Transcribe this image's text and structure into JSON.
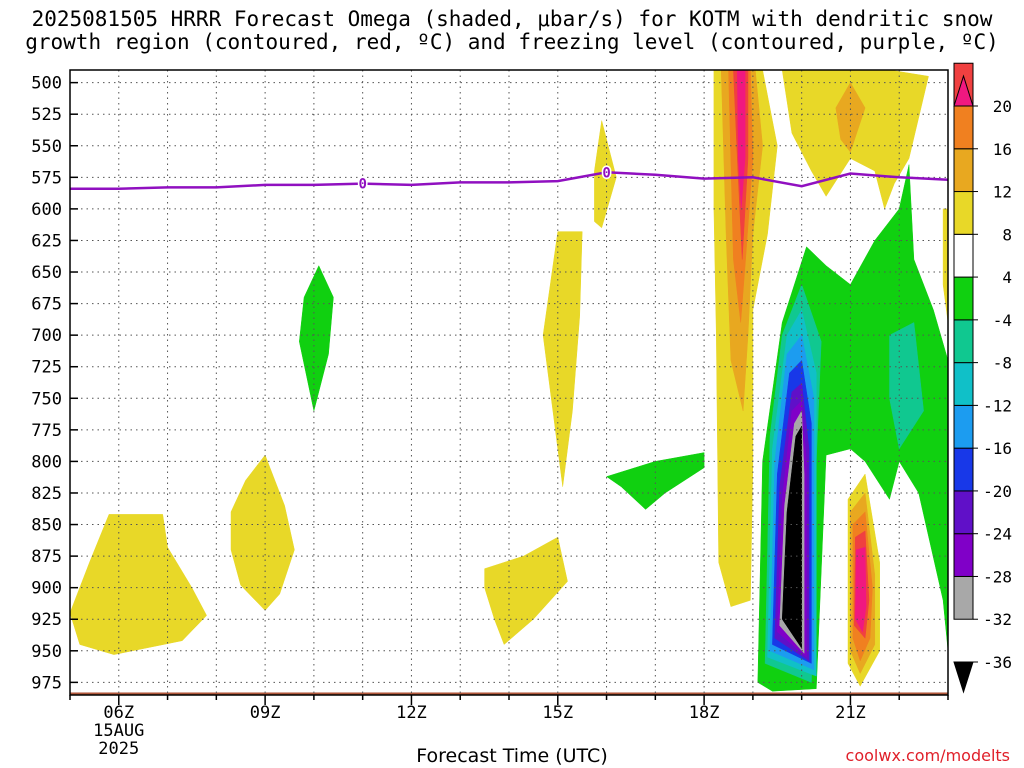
{
  "chart_data": {
    "type": "heatmap",
    "title_line1": "2025081505 HRRR Forecast Omega (shaded, μbar/s) for KOTM with dendritic snow",
    "title_line2": "growth region (contoured, red, ºC) and freezing level (contoured, purple, ºC)",
    "xlabel": "Forecast Time (UTC)",
    "credit": "coolwx.com/modelts",
    "x_ticks": [
      "06Z",
      "09Z",
      "12Z",
      "15Z",
      "18Z",
      "21Z"
    ],
    "x_tick_hours": [
      6,
      9,
      12,
      15,
      18,
      21
    ],
    "x_date_lines": [
      "15AUG",
      "2025"
    ],
    "xlim": [
      5,
      23
    ],
    "y_ticks": [
      500,
      525,
      550,
      575,
      600,
      625,
      650,
      675,
      700,
      725,
      750,
      775,
      800,
      825,
      850,
      875,
      900,
      925,
      950,
      975
    ],
    "ylim": [
      490,
      985
    ],
    "ground_pressure": 983,
    "grid": true,
    "colorbar": {
      "levels": [
        -36,
        -32,
        -28,
        -24,
        -20,
        -16,
        -12,
        -8,
        -4,
        4,
        8,
        12,
        16,
        20
      ],
      "labels": [
        "20",
        "16",
        "12",
        "8",
        "4",
        "-4",
        "-8",
        "-12",
        "-16",
        "-20",
        "-24",
        "-28",
        "-32",
        "-36"
      ],
      "colors": [
        "#000000",
        "#a8a8a8",
        "#8000c8",
        "#6010c8",
        "#1838e8",
        "#1c9cf0",
        "#10c0c8",
        "#10c890",
        "#10d010",
        "#ffffff",
        "#e8d828",
        "#e8a820",
        "#f08020",
        "#f04040",
        "#f01880"
      ]
    },
    "freezing_level": {
      "label": "0",
      "color": "#9010c0",
      "hours": [
        5,
        6,
        7,
        8,
        9,
        10,
        11,
        12,
        13,
        14,
        15,
        16,
        17,
        18,
        19,
        20,
        21,
        22,
        23
      ],
      "pressure": [
        584,
        584,
        583,
        583,
        581,
        581,
        580,
        581,
        579,
        579,
        578,
        571,
        573,
        576,
        575,
        582,
        572,
        575,
        577
      ]
    },
    "omega_features": [
      {
        "value": 4,
        "color": "#e8d828",
        "points": [
          [
            5,
            920
          ],
          [
            5.4,
            880
          ],
          [
            5.8,
            842
          ],
          [
            6.9,
            842
          ],
          [
            7,
            868
          ],
          [
            7.5,
            900
          ],
          [
            7.8,
            922
          ],
          [
            7.3,
            942
          ],
          [
            5.9,
            953
          ],
          [
            5.2,
            945
          ]
        ]
      },
      {
        "value": 4,
        "color": "#e8d828",
        "points": [
          [
            8.3,
            840
          ],
          [
            8.6,
            815
          ],
          [
            9.0,
            795
          ],
          [
            9.4,
            835
          ],
          [
            9.6,
            870
          ],
          [
            9.3,
            905
          ],
          [
            9.0,
            918
          ],
          [
            8.5,
            898
          ],
          [
            8.3,
            870
          ]
        ]
      },
      {
        "value": -4,
        "color": "#10d010",
        "points": [
          [
            10.1,
            645
          ],
          [
            10.4,
            670
          ],
          [
            10.3,
            715
          ],
          [
            10.0,
            760
          ],
          [
            9.7,
            705
          ],
          [
            9.8,
            670
          ]
        ]
      },
      {
        "value": 4,
        "color": "#e8d828",
        "points": [
          [
            13.5,
            885
          ],
          [
            14.3,
            875
          ],
          [
            15.0,
            860
          ],
          [
            15.2,
            895
          ],
          [
            14.5,
            925
          ],
          [
            13.9,
            945
          ],
          [
            13.7,
            925
          ],
          [
            13.5,
            900
          ]
        ]
      },
      {
        "value": 4,
        "color": "#e8d828",
        "points": [
          [
            14.7,
            700
          ],
          [
            15.0,
            618
          ],
          [
            15.5,
            618
          ],
          [
            15.45,
            685
          ],
          [
            15.3,
            760
          ],
          [
            15.1,
            820
          ],
          [
            14.9,
            760
          ]
        ]
      },
      {
        "value": 4,
        "color": "#e8d828",
        "points": [
          [
            15.9,
            530
          ],
          [
            16.2,
            575
          ],
          [
            15.9,
            615
          ],
          [
            15.75,
            610
          ],
          [
            15.75,
            570
          ]
        ]
      },
      {
        "value": -4,
        "color": "#10d010",
        "points": [
          [
            16.0,
            812
          ],
          [
            17.0,
            800
          ],
          [
            18.0,
            793
          ],
          [
            18.0,
            805
          ],
          [
            17.2,
            825
          ],
          [
            16.8,
            838
          ],
          [
            16.3,
            820
          ]
        ]
      },
      {
        "value": 4,
        "color": "#e8d828",
        "points": [
          [
            18.2,
            490
          ],
          [
            19.2,
            490
          ],
          [
            19.5,
            550
          ],
          [
            19.3,
            620
          ],
          [
            19.0,
            680
          ],
          [
            19.0,
            800
          ],
          [
            18.95,
            910
          ],
          [
            18.55,
            915
          ],
          [
            18.3,
            880
          ],
          [
            18.25,
            700
          ],
          [
            18.2,
            600
          ]
        ]
      },
      {
        "value": 8,
        "color": "#e8a820",
        "points": [
          [
            18.35,
            490
          ],
          [
            19.05,
            490
          ],
          [
            19.2,
            550
          ],
          [
            19.0,
            620
          ],
          [
            18.9,
            700
          ],
          [
            18.8,
            760
          ],
          [
            18.55,
            720
          ],
          [
            18.45,
            620
          ]
        ]
      },
      {
        "value": 12,
        "color": "#f08020",
        "points": [
          [
            18.5,
            490
          ],
          [
            18.95,
            490
          ],
          [
            19.0,
            560
          ],
          [
            18.85,
            640
          ],
          [
            18.75,
            690
          ],
          [
            18.6,
            640
          ]
        ]
      },
      {
        "value": 16,
        "color": "#f04040",
        "points": [
          [
            18.6,
            490
          ],
          [
            18.9,
            490
          ],
          [
            18.9,
            560
          ],
          [
            18.78,
            640
          ],
          [
            18.68,
            560
          ]
        ]
      },
      {
        "value": 20,
        "color": "#f01880",
        "points": [
          [
            18.68,
            490
          ],
          [
            18.84,
            490
          ],
          [
            18.84,
            560
          ],
          [
            18.76,
            600
          ],
          [
            18.7,
            560
          ]
        ]
      },
      {
        "value": 4,
        "color": "#e8d828",
        "points": [
          [
            19.6,
            490
          ],
          [
            21.3,
            490
          ],
          [
            21.8,
            490
          ],
          [
            22.6,
            495
          ],
          [
            22.2,
            560
          ],
          [
            21.9,
            580
          ],
          [
            21.7,
            600
          ],
          [
            21.5,
            570
          ],
          [
            21.0,
            560
          ],
          [
            20.5,
            590
          ],
          [
            20.2,
            570
          ],
          [
            19.8,
            540
          ]
        ]
      },
      {
        "value": 8,
        "color": "#e8a820",
        "points": [
          [
            20.7,
            520
          ],
          [
            21.0,
            500
          ],
          [
            21.3,
            520
          ],
          [
            21.0,
            555
          ],
          [
            20.8,
            545
          ]
        ]
      },
      {
        "value": -4,
        "color": "#10d010",
        "points": [
          [
            19.1,
            975
          ],
          [
            19.2,
            800
          ],
          [
            19.6,
            690
          ],
          [
            20.1,
            630
          ],
          [
            20.5,
            645
          ],
          [
            21.0,
            660
          ],
          [
            21.5,
            625
          ],
          [
            22.0,
            600
          ],
          [
            22.2,
            565
          ],
          [
            22.3,
            640
          ],
          [
            22.7,
            680
          ],
          [
            23.0,
            720
          ],
          [
            23.0,
            950
          ],
          [
            22.9,
            910
          ],
          [
            22.4,
            825
          ],
          [
            22.0,
            800
          ],
          [
            21.8,
            830
          ],
          [
            21.3,
            800
          ],
          [
            21.0,
            790
          ],
          [
            20.5,
            795
          ],
          [
            20.3,
            980
          ],
          [
            19.4,
            982
          ]
        ]
      },
      {
        "value": -8,
        "color": "#10c890",
        "points": [
          [
            19.25,
            960
          ],
          [
            19.35,
            780
          ],
          [
            19.6,
            700
          ],
          [
            20.0,
            660
          ],
          [
            20.4,
            705
          ],
          [
            20.3,
            800
          ],
          [
            20.2,
            975
          ]
        ]
      },
      {
        "value": -8,
        "color": "#10c890",
        "points": [
          [
            21.8,
            700
          ],
          [
            22.3,
            690
          ],
          [
            22.5,
            760
          ],
          [
            22.0,
            790
          ],
          [
            21.8,
            750
          ]
        ]
      },
      {
        "value": -12,
        "color": "#10c0c8",
        "points": [
          [
            19.3,
            955
          ],
          [
            19.4,
            790
          ],
          [
            19.7,
            700
          ],
          [
            20.0,
            680
          ],
          [
            20.3,
            730
          ],
          [
            20.3,
            970
          ]
        ]
      },
      {
        "value": -16,
        "color": "#1c9cf0",
        "points": [
          [
            19.35,
            950
          ],
          [
            19.45,
            800
          ],
          [
            19.7,
            715
          ],
          [
            20.0,
            700
          ],
          [
            20.25,
            750
          ],
          [
            20.25,
            965
          ]
        ]
      },
      {
        "value": -20,
        "color": "#1838e8",
        "points": [
          [
            19.4,
            945
          ],
          [
            19.5,
            810
          ],
          [
            19.75,
            730
          ],
          [
            20.0,
            720
          ],
          [
            20.2,
            770
          ],
          [
            20.2,
            960
          ]
        ]
      },
      {
        "value": -24,
        "color": "#6010c8",
        "points": [
          [
            19.45,
            940
          ],
          [
            19.55,
            820
          ],
          [
            19.8,
            745
          ],
          [
            20.0,
            738
          ],
          [
            20.15,
            790
          ],
          [
            20.15,
            958
          ]
        ]
      },
      {
        "value": -28,
        "color": "#8000c8",
        "points": [
          [
            19.5,
            935
          ],
          [
            19.6,
            830
          ],
          [
            19.8,
            760
          ],
          [
            20.0,
            752
          ],
          [
            20.1,
            800
          ],
          [
            20.1,
            955
          ]
        ]
      },
      {
        "value": -32,
        "color": "#a8a8a8",
        "points": [
          [
            19.55,
            930
          ],
          [
            19.65,
            835
          ],
          [
            19.85,
            770
          ],
          [
            20.0,
            760
          ],
          [
            20.05,
            810
          ],
          [
            20.05,
            952
          ]
        ]
      },
      {
        "value": -36,
        "color": "#000000",
        "points": [
          [
            19.6,
            925
          ],
          [
            19.7,
            840
          ],
          [
            19.88,
            780
          ],
          [
            20.0,
            772
          ],
          [
            20.0,
            820
          ],
          [
            20.0,
            948
          ]
        ]
      },
      {
        "value": 4,
        "color": "#e8d828",
        "points": [
          [
            20.95,
            960
          ],
          [
            20.95,
            830
          ],
          [
            21.3,
            810
          ],
          [
            21.6,
            880
          ],
          [
            21.6,
            950
          ],
          [
            21.2,
            978
          ]
        ]
      },
      {
        "value": 8,
        "color": "#e8a820",
        "points": [
          [
            21.0,
            950
          ],
          [
            21.0,
            840
          ],
          [
            21.3,
            825
          ],
          [
            21.5,
            890
          ],
          [
            21.5,
            945
          ],
          [
            21.2,
            968
          ]
        ]
      },
      {
        "value": 12,
        "color": "#f08020",
        "points": [
          [
            21.05,
            940
          ],
          [
            21.05,
            850
          ],
          [
            21.3,
            840
          ],
          [
            21.45,
            900
          ],
          [
            21.4,
            940
          ],
          [
            21.2,
            958
          ]
        ]
      },
      {
        "value": 16,
        "color": "#f04040",
        "points": [
          [
            21.08,
            930
          ],
          [
            21.1,
            860
          ],
          [
            21.3,
            855
          ],
          [
            21.38,
            910
          ],
          [
            21.3,
            940
          ]
        ]
      },
      {
        "value": 20,
        "color": "#f01880",
        "points": [
          [
            21.1,
            925
          ],
          [
            21.12,
            870
          ],
          [
            21.3,
            868
          ],
          [
            21.32,
            915
          ],
          [
            21.25,
            935
          ]
        ]
      },
      {
        "value": 4,
        "color": "#e8d828",
        "points": [
          [
            22.9,
            600
          ],
          [
            23.0,
            600
          ],
          [
            23.0,
            690
          ],
          [
            22.9,
            660
          ]
        ]
      }
    ]
  }
}
